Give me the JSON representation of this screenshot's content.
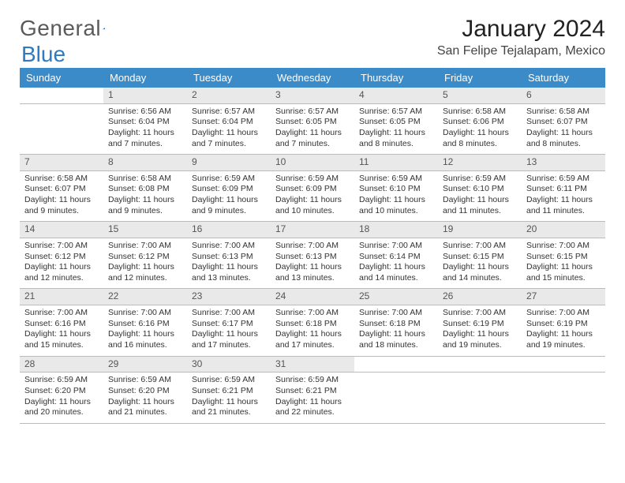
{
  "logo": {
    "text1": "General",
    "text2": "Blue",
    "color_gray": "#6a6a6a",
    "color_blue": "#2d7bc0"
  },
  "header": {
    "month": "January 2024",
    "location": "San Felipe Tejalapam, Mexico"
  },
  "colors": {
    "header_bg": "#3b8bc9",
    "daynum_bg": "#e9e9e9",
    "rule": "#bbbbbb",
    "text": "#333333"
  },
  "weekdays": [
    "Sunday",
    "Monday",
    "Tuesday",
    "Wednesday",
    "Thursday",
    "Friday",
    "Saturday"
  ],
  "weeks": [
    [
      null,
      {
        "n": "1",
        "sr": "Sunrise: 6:56 AM",
        "ss": "Sunset: 6:04 PM",
        "d1": "Daylight: 11 hours",
        "d2": "and 7 minutes."
      },
      {
        "n": "2",
        "sr": "Sunrise: 6:57 AM",
        "ss": "Sunset: 6:04 PM",
        "d1": "Daylight: 11 hours",
        "d2": "and 7 minutes."
      },
      {
        "n": "3",
        "sr": "Sunrise: 6:57 AM",
        "ss": "Sunset: 6:05 PM",
        "d1": "Daylight: 11 hours",
        "d2": "and 7 minutes."
      },
      {
        "n": "4",
        "sr": "Sunrise: 6:57 AM",
        "ss": "Sunset: 6:05 PM",
        "d1": "Daylight: 11 hours",
        "d2": "and 8 minutes."
      },
      {
        "n": "5",
        "sr": "Sunrise: 6:58 AM",
        "ss": "Sunset: 6:06 PM",
        "d1": "Daylight: 11 hours",
        "d2": "and 8 minutes."
      },
      {
        "n": "6",
        "sr": "Sunrise: 6:58 AM",
        "ss": "Sunset: 6:07 PM",
        "d1": "Daylight: 11 hours",
        "d2": "and 8 minutes."
      }
    ],
    [
      {
        "n": "7",
        "sr": "Sunrise: 6:58 AM",
        "ss": "Sunset: 6:07 PM",
        "d1": "Daylight: 11 hours",
        "d2": "and 9 minutes."
      },
      {
        "n": "8",
        "sr": "Sunrise: 6:58 AM",
        "ss": "Sunset: 6:08 PM",
        "d1": "Daylight: 11 hours",
        "d2": "and 9 minutes."
      },
      {
        "n": "9",
        "sr": "Sunrise: 6:59 AM",
        "ss": "Sunset: 6:09 PM",
        "d1": "Daylight: 11 hours",
        "d2": "and 9 minutes."
      },
      {
        "n": "10",
        "sr": "Sunrise: 6:59 AM",
        "ss": "Sunset: 6:09 PM",
        "d1": "Daylight: 11 hours",
        "d2": "and 10 minutes."
      },
      {
        "n": "11",
        "sr": "Sunrise: 6:59 AM",
        "ss": "Sunset: 6:10 PM",
        "d1": "Daylight: 11 hours",
        "d2": "and 10 minutes."
      },
      {
        "n": "12",
        "sr": "Sunrise: 6:59 AM",
        "ss": "Sunset: 6:10 PM",
        "d1": "Daylight: 11 hours",
        "d2": "and 11 minutes."
      },
      {
        "n": "13",
        "sr": "Sunrise: 6:59 AM",
        "ss": "Sunset: 6:11 PM",
        "d1": "Daylight: 11 hours",
        "d2": "and 11 minutes."
      }
    ],
    [
      {
        "n": "14",
        "sr": "Sunrise: 7:00 AM",
        "ss": "Sunset: 6:12 PM",
        "d1": "Daylight: 11 hours",
        "d2": "and 12 minutes."
      },
      {
        "n": "15",
        "sr": "Sunrise: 7:00 AM",
        "ss": "Sunset: 6:12 PM",
        "d1": "Daylight: 11 hours",
        "d2": "and 12 minutes."
      },
      {
        "n": "16",
        "sr": "Sunrise: 7:00 AM",
        "ss": "Sunset: 6:13 PM",
        "d1": "Daylight: 11 hours",
        "d2": "and 13 minutes."
      },
      {
        "n": "17",
        "sr": "Sunrise: 7:00 AM",
        "ss": "Sunset: 6:13 PM",
        "d1": "Daylight: 11 hours",
        "d2": "and 13 minutes."
      },
      {
        "n": "18",
        "sr": "Sunrise: 7:00 AM",
        "ss": "Sunset: 6:14 PM",
        "d1": "Daylight: 11 hours",
        "d2": "and 14 minutes."
      },
      {
        "n": "19",
        "sr": "Sunrise: 7:00 AM",
        "ss": "Sunset: 6:15 PM",
        "d1": "Daylight: 11 hours",
        "d2": "and 14 minutes."
      },
      {
        "n": "20",
        "sr": "Sunrise: 7:00 AM",
        "ss": "Sunset: 6:15 PM",
        "d1": "Daylight: 11 hours",
        "d2": "and 15 minutes."
      }
    ],
    [
      {
        "n": "21",
        "sr": "Sunrise: 7:00 AM",
        "ss": "Sunset: 6:16 PM",
        "d1": "Daylight: 11 hours",
        "d2": "and 15 minutes."
      },
      {
        "n": "22",
        "sr": "Sunrise: 7:00 AM",
        "ss": "Sunset: 6:16 PM",
        "d1": "Daylight: 11 hours",
        "d2": "and 16 minutes."
      },
      {
        "n": "23",
        "sr": "Sunrise: 7:00 AM",
        "ss": "Sunset: 6:17 PM",
        "d1": "Daylight: 11 hours",
        "d2": "and 17 minutes."
      },
      {
        "n": "24",
        "sr": "Sunrise: 7:00 AM",
        "ss": "Sunset: 6:18 PM",
        "d1": "Daylight: 11 hours",
        "d2": "and 17 minutes."
      },
      {
        "n": "25",
        "sr": "Sunrise: 7:00 AM",
        "ss": "Sunset: 6:18 PM",
        "d1": "Daylight: 11 hours",
        "d2": "and 18 minutes."
      },
      {
        "n": "26",
        "sr": "Sunrise: 7:00 AM",
        "ss": "Sunset: 6:19 PM",
        "d1": "Daylight: 11 hours",
        "d2": "and 19 minutes."
      },
      {
        "n": "27",
        "sr": "Sunrise: 7:00 AM",
        "ss": "Sunset: 6:19 PM",
        "d1": "Daylight: 11 hours",
        "d2": "and 19 minutes."
      }
    ],
    [
      {
        "n": "28",
        "sr": "Sunrise: 6:59 AM",
        "ss": "Sunset: 6:20 PM",
        "d1": "Daylight: 11 hours",
        "d2": "and 20 minutes."
      },
      {
        "n": "29",
        "sr": "Sunrise: 6:59 AM",
        "ss": "Sunset: 6:20 PM",
        "d1": "Daylight: 11 hours",
        "d2": "and 21 minutes."
      },
      {
        "n": "30",
        "sr": "Sunrise: 6:59 AM",
        "ss": "Sunset: 6:21 PM",
        "d1": "Daylight: 11 hours",
        "d2": "and 21 minutes."
      },
      {
        "n": "31",
        "sr": "Sunrise: 6:59 AM",
        "ss": "Sunset: 6:21 PM",
        "d1": "Daylight: 11 hours",
        "d2": "and 22 minutes."
      },
      null,
      null,
      null
    ]
  ]
}
